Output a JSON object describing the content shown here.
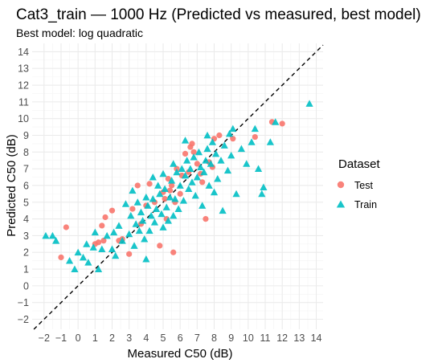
{
  "chart_data": {
    "type": "scatter",
    "title": "Cat3_train — 1000 Hz (Predicted vs measured, best model)",
    "subtitle": "Best model: log quadratic",
    "xlabel": "Measured C50 (dB)",
    "ylabel": "Predicted C50 (dB)",
    "xlim": [
      -2.7,
      14.4
    ],
    "ylim": [
      -2.6,
      14.5
    ],
    "x_ticks": [
      -2,
      -1,
      0,
      1,
      2,
      3,
      4,
      5,
      6,
      7,
      8,
      9,
      10,
      11,
      12,
      13,
      14
    ],
    "y_ticks": [
      -2,
      -1,
      0,
      1,
      2,
      3,
      4,
      5,
      6,
      7,
      8,
      9,
      10,
      11,
      12,
      13,
      14
    ],
    "tick_labels_x": [
      "−2",
      "−1",
      "0",
      "1",
      "2",
      "3",
      "4",
      "5",
      "6",
      "7",
      "8",
      "9",
      "10",
      "11",
      "12",
      "13",
      "14"
    ],
    "tick_labels_y": [
      "−2",
      "−1",
      "0",
      "1",
      "2",
      "3",
      "4",
      "5",
      "6",
      "7",
      "8",
      "9",
      "10",
      "11",
      "12",
      "13",
      "14"
    ],
    "reference_line": "y = x (dashed)",
    "grid": true,
    "legend": {
      "title": "Dataset",
      "position": "right",
      "entries": [
        {
          "name": "Test",
          "color": "#F8766D",
          "marker": "circle"
        },
        {
          "name": "Train",
          "color": "#00BFC4",
          "marker": "triangle"
        }
      ]
    },
    "series": [
      {
        "name": "Test",
        "color": "#F8766D",
        "marker": "circle",
        "points": [
          [
            -1.0,
            1.7
          ],
          [
            -0.7,
            3.5
          ],
          [
            1.0,
            2.5
          ],
          [
            1.2,
            2.6
          ],
          [
            1.4,
            3.6
          ],
          [
            1.6,
            4.1
          ],
          [
            1.5,
            2.7
          ],
          [
            2.0,
            4.5
          ],
          [
            2.4,
            2.7
          ],
          [
            2.6,
            2.8
          ],
          [
            3.0,
            1.9
          ],
          [
            3.2,
            4.6
          ],
          [
            3.5,
            6.0
          ],
          [
            3.7,
            3.7
          ],
          [
            4.0,
            4.8
          ],
          [
            4.2,
            6.1
          ],
          [
            4.5,
            5.0
          ],
          [
            4.8,
            2.4
          ],
          [
            5.0,
            5.6
          ],
          [
            5.1,
            5.2
          ],
          [
            5.2,
            4.0
          ],
          [
            5.4,
            5.7
          ],
          [
            5.5,
            6.0
          ],
          [
            5.6,
            2.0
          ],
          [
            5.7,
            5.0
          ],
          [
            5.8,
            7.0
          ],
          [
            6.0,
            5.5
          ],
          [
            6.1,
            6.6
          ],
          [
            6.3,
            7.9
          ],
          [
            6.5,
            6.8
          ],
          [
            6.6,
            8.3
          ],
          [
            6.8,
            8.0
          ],
          [
            7.0,
            7.3
          ],
          [
            7.2,
            6.7
          ],
          [
            7.3,
            6.2
          ],
          [
            7.5,
            4.0
          ],
          [
            7.7,
            7.4
          ],
          [
            7.9,
            7.1
          ],
          [
            8.0,
            8.8
          ],
          [
            8.3,
            9.0
          ],
          [
            9.1,
            8.8
          ],
          [
            10.4,
            8.9
          ],
          [
            11.4,
            9.8
          ],
          [
            12.0,
            9.7
          ],
          [
            5.3,
            6.4
          ],
          [
            6.7,
            8.5
          ]
        ]
      },
      {
        "name": "Train",
        "color": "#00BFC4",
        "marker": "triangle",
        "points": [
          [
            -1.9,
            3.0
          ],
          [
            -1.5,
            3.0
          ],
          [
            -1.3,
            2.7
          ],
          [
            -0.5,
            1.5
          ],
          [
            -0.2,
            1.0
          ],
          [
            0.0,
            2.0
          ],
          [
            0.3,
            1.7
          ],
          [
            0.5,
            2.5
          ],
          [
            0.6,
            1.4
          ],
          [
            0.9,
            2.3
          ],
          [
            1.2,
            1.0
          ],
          [
            1.0,
            3.2
          ],
          [
            1.4,
            2.2
          ],
          [
            1.7,
            3.0
          ],
          [
            2.0,
            2.2
          ],
          [
            2.1,
            3.2
          ],
          [
            2.4,
            3.6
          ],
          [
            2.6,
            2.7
          ],
          [
            2.8,
            4.9
          ],
          [
            3.0,
            3.1
          ],
          [
            3.1,
            4.2
          ],
          [
            3.2,
            5.7
          ],
          [
            3.4,
            3.7
          ],
          [
            3.5,
            5.0
          ],
          [
            3.6,
            3.3
          ],
          [
            3.7,
            4.4
          ],
          [
            3.8,
            3.9
          ],
          [
            3.9,
            2.8
          ],
          [
            4.0,
            1.6
          ],
          [
            4.0,
            5.3
          ],
          [
            4.1,
            4.8
          ],
          [
            4.2,
            3.3
          ],
          [
            4.3,
            4.2
          ],
          [
            4.4,
            5.2
          ],
          [
            4.5,
            3.8
          ],
          [
            4.6,
            4.6
          ],
          [
            4.7,
            6.0
          ],
          [
            4.8,
            5.5
          ],
          [
            4.9,
            4.3
          ],
          [
            5.0,
            3.5
          ],
          [
            5.0,
            6.7
          ],
          [
            5.1,
            5.8
          ],
          [
            5.2,
            4.7
          ],
          [
            5.3,
            3.9
          ],
          [
            5.4,
            5.3
          ],
          [
            5.5,
            6.3
          ],
          [
            5.6,
            7.3
          ],
          [
            5.7,
            5.2
          ],
          [
            5.8,
            6.8
          ],
          [
            5.9,
            4.6
          ],
          [
            6.0,
            6.0
          ],
          [
            6.1,
            7.0
          ],
          [
            6.2,
            5.1
          ],
          [
            6.3,
            6.6
          ],
          [
            6.4,
            7.5
          ],
          [
            6.5,
            5.8
          ],
          [
            6.6,
            7.0
          ],
          [
            6.7,
            6.2
          ],
          [
            6.8,
            7.7
          ],
          [
            6.9,
            5.4
          ],
          [
            7.0,
            6.5
          ],
          [
            7.1,
            8.0
          ],
          [
            7.2,
            7.1
          ],
          [
            7.3,
            4.8
          ],
          [
            7.4,
            6.8
          ],
          [
            7.5,
            7.5
          ],
          [
            7.6,
            8.2
          ],
          [
            7.7,
            6.0
          ],
          [
            7.8,
            7.3
          ],
          [
            7.9,
            8.6
          ],
          [
            8.0,
            5.6
          ],
          [
            8.1,
            7.9
          ],
          [
            8.2,
            6.4
          ],
          [
            8.4,
            7.5
          ],
          [
            8.5,
            4.5
          ],
          [
            8.6,
            8.4
          ],
          [
            8.8,
            6.9
          ],
          [
            9.0,
            7.8
          ],
          [
            9.1,
            9.4
          ],
          [
            9.3,
            5.5
          ],
          [
            9.6,
            8.2
          ],
          [
            9.9,
            7.3
          ],
          [
            10.2,
            8.6
          ],
          [
            10.4,
            9.4
          ],
          [
            10.6,
            7.0
          ],
          [
            10.8,
            5.5
          ],
          [
            10.9,
            5.9
          ],
          [
            11.3,
            8.6
          ],
          [
            11.6,
            9.8
          ],
          [
            13.6,
            10.9
          ],
          [
            2.2,
            1.8
          ],
          [
            3.3,
            2.4
          ],
          [
            4.4,
            6.5
          ],
          [
            5.6,
            4.2
          ],
          [
            6.3,
            8.7
          ],
          [
            7.6,
            9.0
          ],
          [
            8.9,
            9.1
          ]
        ]
      }
    ]
  }
}
